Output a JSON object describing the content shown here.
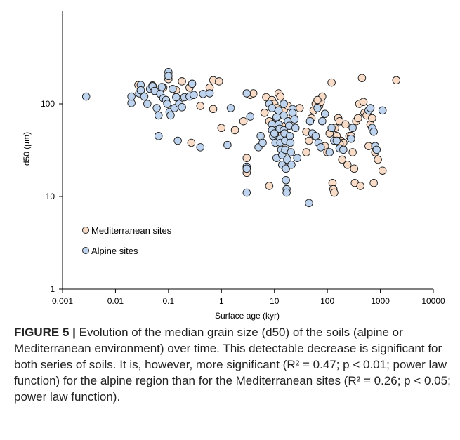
{
  "chart_data": {
    "type": "scatter",
    "xlabel": "Surface age (kyr)",
    "ylabel": "d50 (µm)",
    "x_scale": "log",
    "y_scale": "log",
    "xlim": [
      0.001,
      10000
    ],
    "ylim": [
      1,
      1000
    ],
    "x_ticks": [
      "0.001",
      "0.01",
      "0.1",
      "1",
      "10",
      "100",
      "1000",
      "10000"
    ],
    "y_ticks": [
      "1",
      "10",
      "100"
    ],
    "legend_position": "bottom-left",
    "grid": false,
    "series": [
      {
        "name": "Mediterranean sites",
        "color": "#f8dcc8",
        "points": [
          [
            0.027,
            160
          ],
          [
            0.05,
            158
          ],
          [
            0.08,
            150
          ],
          [
            0.1,
            185
          ],
          [
            0.14,
            140
          ],
          [
            0.18,
            175
          ],
          [
            0.25,
            150
          ],
          [
            0.4,
            95
          ],
          [
            0.6,
            150
          ],
          [
            0.7,
            180
          ],
          [
            0.9,
            175
          ],
          [
            0.27,
            38
          ],
          [
            0.7,
            88
          ],
          [
            1.0,
            55
          ],
          [
            1.8,
            52
          ],
          [
            2.6,
            65
          ],
          [
            3.0,
            26
          ],
          [
            3.5,
            125
          ],
          [
            4.0,
            130
          ],
          [
            6.5,
            80
          ],
          [
            8.0,
            65
          ],
          [
            7.0,
            118
          ],
          [
            9.0,
            110
          ],
          [
            10.0,
            100
          ],
          [
            11.0,
            90
          ],
          [
            12.0,
            130
          ],
          [
            13.0,
            120
          ],
          [
            15.0,
            85
          ],
          [
            18.0,
            95
          ],
          [
            22.0,
            75
          ],
          [
            30.0,
            90
          ],
          [
            3.0,
            18
          ],
          [
            8.0,
            13
          ],
          [
            40.0,
            30
          ],
          [
            45.0,
            40
          ],
          [
            50.0,
            70
          ],
          [
            55.0,
            85
          ],
          [
            60.0,
            100
          ],
          [
            70.0,
            95
          ],
          [
            75.0,
            105
          ],
          [
            80.0,
            120
          ],
          [
            90.0,
            35
          ],
          [
            100.0,
            30
          ],
          [
            110.0,
            48
          ],
          [
            120.0,
            170
          ],
          [
            125.0,
            14
          ],
          [
            130.0,
            12
          ],
          [
            135.0,
            11
          ],
          [
            140.0,
            55
          ],
          [
            150.0,
            45
          ],
          [
            160.0,
            70
          ],
          [
            170.0,
            65
          ],
          [
            180.0,
            40
          ],
          [
            190.0,
            25
          ],
          [
            200.0,
            38
          ],
          [
            220.0,
            60
          ],
          [
            240.0,
            22
          ],
          [
            260.0,
            45
          ],
          [
            280.0,
            45
          ],
          [
            300.0,
            30
          ],
          [
            320.0,
            20
          ],
          [
            330.0,
            14
          ],
          [
            350.0,
            65
          ],
          [
            380.0,
            70
          ],
          [
            400.0,
            100
          ],
          [
            420.0,
            13
          ],
          [
            450.0,
            190
          ],
          [
            480.0,
            105
          ],
          [
            500.0,
            80
          ],
          [
            550.0,
            75
          ],
          [
            600.0,
            35
          ],
          [
            650.0,
            60
          ],
          [
            700.0,
            70
          ],
          [
            750.0,
            14
          ],
          [
            800.0,
            30
          ],
          [
            900.0,
            25
          ],
          [
            1100.0,
            19
          ],
          [
            2000.0,
            180
          ],
          [
            11.0,
            70
          ],
          [
            14.0,
            48
          ],
          [
            16.0,
            58
          ],
          [
            40.0,
            50
          ],
          [
            65.0,
            110
          ],
          [
            170.0,
            37
          ]
        ]
      },
      {
        "name": "Alpine sites",
        "color": "#bed3ee",
        "points": [
          [
            0.0028,
            120
          ],
          [
            0.02,
            102
          ],
          [
            0.02,
            120
          ],
          [
            0.028,
            130
          ],
          [
            0.03,
            160
          ],
          [
            0.03,
            140
          ],
          [
            0.035,
            120
          ],
          [
            0.04,
            100
          ],
          [
            0.045,
            145
          ],
          [
            0.05,
            155
          ],
          [
            0.055,
            138
          ],
          [
            0.06,
            90
          ],
          [
            0.065,
            75
          ],
          [
            0.065,
            45
          ],
          [
            0.07,
            128
          ],
          [
            0.075,
            152
          ],
          [
            0.08,
            115
          ],
          [
            0.09,
            110
          ],
          [
            0.095,
            100
          ],
          [
            0.1,
            220
          ],
          [
            0.1,
            200
          ],
          [
            0.105,
            82
          ],
          [
            0.11,
            75
          ],
          [
            0.12,
            145
          ],
          [
            0.13,
            90
          ],
          [
            0.14,
            118
          ],
          [
            0.15,
            40
          ],
          [
            0.16,
            100
          ],
          [
            0.18,
            92
          ],
          [
            0.2,
            118
          ],
          [
            0.25,
            120
          ],
          [
            0.28,
            165
          ],
          [
            0.3,
            125
          ],
          [
            0.4,
            34
          ],
          [
            0.45,
            128
          ],
          [
            0.6,
            130
          ],
          [
            1.3,
            36
          ],
          [
            1.5,
            90
          ],
          [
            3.0,
            130
          ],
          [
            3.0,
            21
          ],
          [
            3.0,
            20
          ],
          [
            3.0,
            11
          ],
          [
            3.5,
            73
          ],
          [
            5.0,
            34
          ],
          [
            5.5,
            45
          ],
          [
            6.0,
            38
          ],
          [
            8.0,
            100
          ],
          [
            9.0,
            90
          ],
          [
            9.0,
            60
          ],
          [
            9.0,
            52
          ],
          [
            9.5,
            45
          ],
          [
            10.0,
            48
          ],
          [
            10.5,
            38
          ],
          [
            11.0,
            26
          ],
          [
            11.0,
            72
          ],
          [
            12.0,
            85
          ],
          [
            12.0,
            60
          ],
          [
            12.5,
            54
          ],
          [
            13.0,
            42
          ],
          [
            13.0,
            38
          ],
          [
            13.5,
            32
          ],
          [
            14.0,
            28
          ],
          [
            14.0,
            22
          ],
          [
            15.0,
            100
          ],
          [
            15.0,
            75
          ],
          [
            15.0,
            52
          ],
          [
            15.5,
            48
          ],
          [
            16.0,
            40
          ],
          [
            16.0,
            32
          ],
          [
            16.5,
            20
          ],
          [
            16.5,
            15
          ],
          [
            17.0,
            12
          ],
          [
            17.0,
            11
          ],
          [
            17.5,
            25
          ],
          [
            18.0,
            65
          ],
          [
            19.0,
            58
          ],
          [
            19.5,
            45
          ],
          [
            20.0,
            38
          ],
          [
            20.5,
            30
          ],
          [
            21.0,
            22
          ],
          [
            22.0,
            88
          ],
          [
            22.0,
            80
          ],
          [
            24.0,
            68
          ],
          [
            25.0,
            55
          ],
          [
            27.0,
            26
          ],
          [
            45.0,
            8.5
          ],
          [
            47.0,
            65
          ],
          [
            52.0,
            48
          ],
          [
            60.0,
            45
          ],
          [
            65.0,
            90
          ],
          [
            68.0,
            38
          ],
          [
            75.0,
            34
          ],
          [
            80.0,
            65
          ],
          [
            90.0,
            78
          ],
          [
            110.0,
            30
          ],
          [
            120.0,
            55
          ],
          [
            135.0,
            40
          ],
          [
            150.0,
            40
          ],
          [
            170.0,
            33
          ],
          [
            200.0,
            32
          ],
          [
            280.0,
            42
          ],
          [
            300.0,
            55
          ],
          [
            600.0,
            85
          ],
          [
            650.0,
            90
          ],
          [
            700.0,
            55
          ],
          [
            750.0,
            50
          ],
          [
            800.0,
            35
          ],
          [
            850.0,
            32
          ],
          [
            1100.0,
            85
          ]
        ]
      }
    ]
  },
  "caption": {
    "label": "FIGURE 5 |",
    "text": " Evolution of the median grain size (d50) of the soils (alpine or Mediterranean environment) over time. This detectable decrease is significant for both series of soils. It is, however, more significant (R² = 0.47; p < 0.01; power law function) for the alpine region than for the Mediterranean sites (R² = 0.26; p < 0.05; power law function)."
  }
}
